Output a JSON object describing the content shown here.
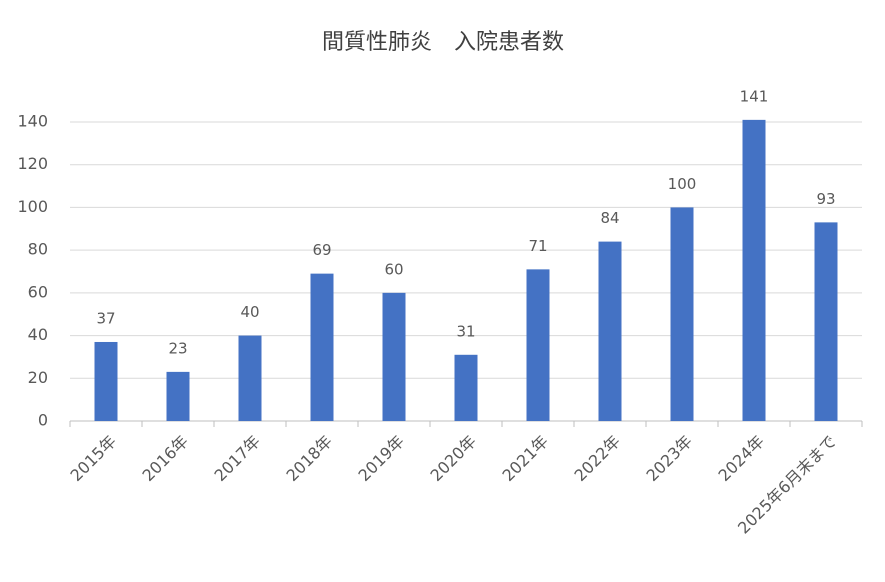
{
  "chart_data": {
    "type": "bar",
    "title": "間質性肺炎　入院患者数",
    "categories": [
      "2015年",
      "2016年",
      "2017年",
      "2018年",
      "2019年",
      "2020年",
      "2021年",
      "2022年",
      "2023年",
      "2024年",
      "2025年6月末まで"
    ],
    "values": [
      37,
      23,
      40,
      69,
      60,
      31,
      71,
      84,
      100,
      141,
      93
    ],
    "color": "#4472c4",
    "ylim": [
      0,
      140
    ],
    "yticks": [
      0,
      20,
      40,
      60,
      80,
      100,
      120,
      140
    ],
    "grid": true
  }
}
